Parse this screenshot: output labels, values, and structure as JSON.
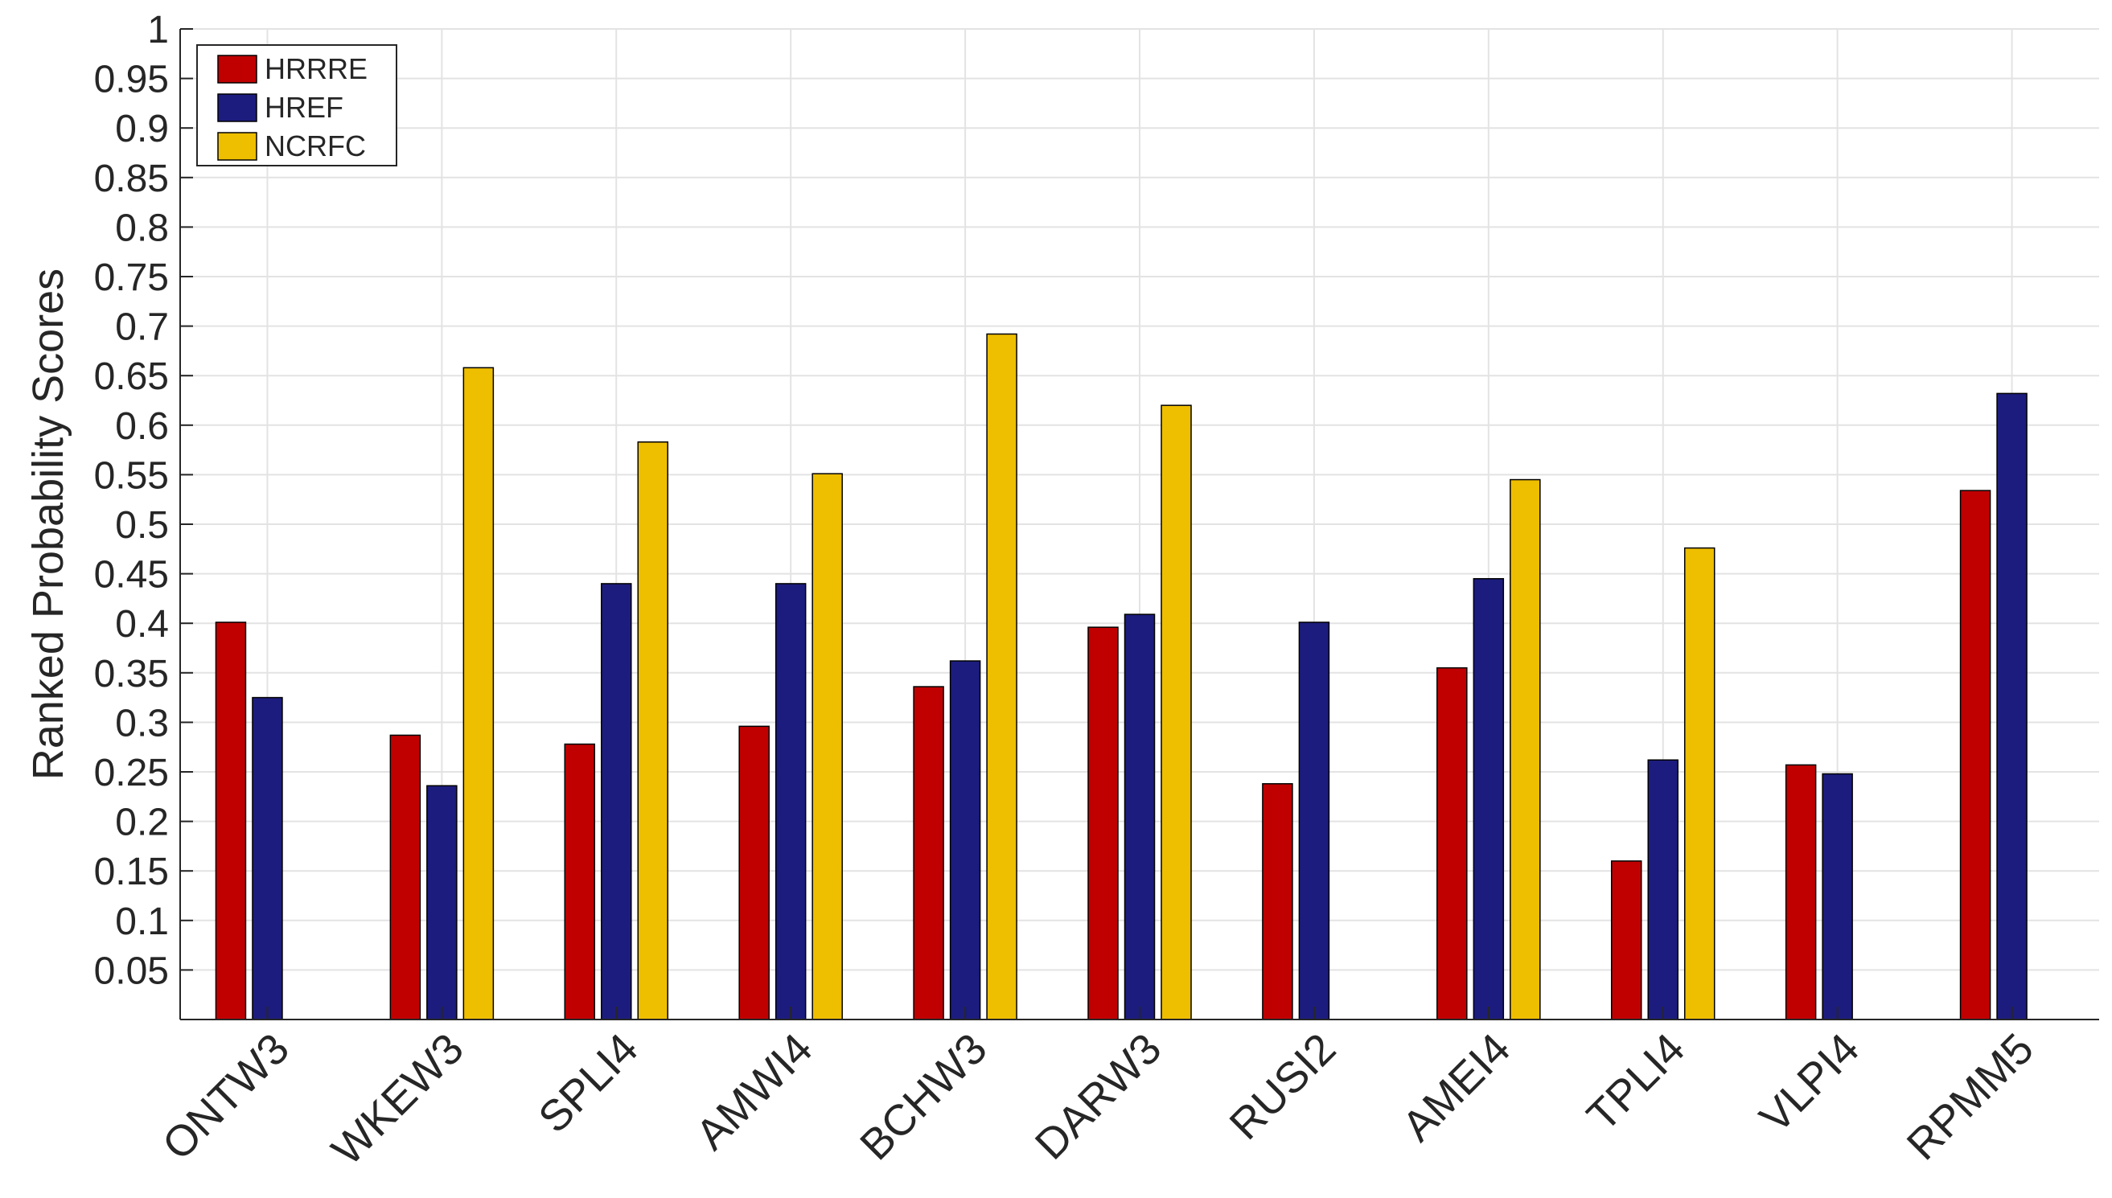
{
  "chart_data": {
    "type": "bar",
    "title": "",
    "xlabel": "",
    "ylabel": "Ranked Probability Scores",
    "ylim": [
      0,
      1
    ],
    "yticks": [
      "0.05",
      "0.1",
      "0.15",
      "0.2",
      "0.25",
      "0.3",
      "0.35",
      "0.4",
      "0.45",
      "0.5",
      "0.55",
      "0.6",
      "0.65",
      "0.7",
      "0.75",
      "0.8",
      "0.85",
      "0.9",
      "0.95",
      "1"
    ],
    "grid": true,
    "legend_position": "top-left",
    "categories": [
      "ONTW3",
      "WKEW3",
      "SPLI4",
      "AMWI4",
      "BCHW3",
      "DARW3",
      "RUSI2",
      "AMEI4",
      "TPLI4",
      "VLPI4",
      "RPMM5"
    ],
    "series": [
      {
        "name": "HRRRE",
        "color": "#C00000",
        "values": [
          0.401,
          0.287,
          0.278,
          0.296,
          0.336,
          0.396,
          0.238,
          0.355,
          0.16,
          0.257,
          0.534
        ]
      },
      {
        "name": "HREF",
        "color": "#1C1C7E",
        "values": [
          0.325,
          0.236,
          0.44,
          0.44,
          0.362,
          0.409,
          0.401,
          0.445,
          0.262,
          0.248,
          0.632
        ]
      },
      {
        "name": "NCRFC",
        "color": "#EEBE00",
        "values": [
          0,
          0.658,
          0.583,
          0.551,
          0.692,
          0.62,
          0,
          0.545,
          0.476,
          0,
          0
        ]
      }
    ]
  }
}
